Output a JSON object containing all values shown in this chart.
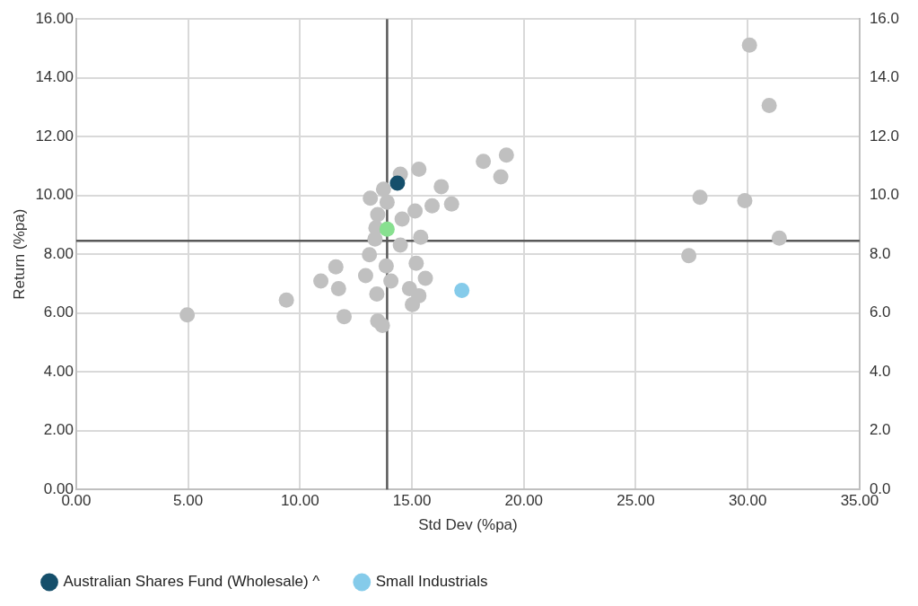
{
  "chart_data": {
    "type": "scatter",
    "xlabel": "Std Dev (%pa)",
    "ylabel": "Return (%pa)",
    "xlim": [
      0,
      35
    ],
    "xticks": [
      {
        "value": 0,
        "label": "0.00"
      },
      {
        "value": 5,
        "label": "5.00"
      },
      {
        "value": 10,
        "label": "10.00"
      },
      {
        "value": 15,
        "label": "15.00"
      },
      {
        "value": 20,
        "label": "20.00"
      },
      {
        "value": 25,
        "label": "25.00"
      },
      {
        "value": 30,
        "label": "30.00"
      },
      {
        "value": 35,
        "label": "35.00"
      }
    ],
    "ylim": [
      0,
      16
    ],
    "yticks": [
      {
        "value": 0,
        "label": "0.00"
      },
      {
        "value": 2,
        "label": "2.00"
      },
      {
        "value": 4,
        "label": "4.00"
      },
      {
        "value": 6,
        "label": "6.00"
      },
      {
        "value": 8,
        "label": "8.00"
      },
      {
        "value": 10,
        "label": "10.00"
      },
      {
        "value": 12,
        "label": "12.00"
      },
      {
        "value": 14,
        "label": "14.00"
      },
      {
        "value": 16,
        "label": "16.00"
      }
    ],
    "y2lim": [
      0,
      16
    ],
    "y2ticks": [
      {
        "value": 0,
        "label": "0.0"
      },
      {
        "value": 2,
        "label": "2.0"
      },
      {
        "value": 4,
        "label": "4.0"
      },
      {
        "value": 6,
        "label": "6.0"
      },
      {
        "value": 8,
        "label": "8.0"
      },
      {
        "value": 10,
        "label": "10.0"
      },
      {
        "value": 12,
        "label": "12.0"
      },
      {
        "value": 14,
        "label": "14.0"
      },
      {
        "value": 16,
        "label": "16.0"
      }
    ],
    "grid": true,
    "legend": "bottom",
    "marker": "circle",
    "ref_lines": [
      {
        "axis": "x",
        "value": 13.89,
        "color": "#595959"
      },
      {
        "axis": "y",
        "value": 8.46,
        "color": "#595959"
      }
    ],
    "series": [
      {
        "color": "#c0c0c0",
        "x": [
          4.96,
          9.39,
          10.93,
          11.6,
          11.72,
          11.97,
          13.47,
          13.68,
          13.14,
          13.73,
          13.89,
          14.48,
          15.31,
          18.19,
          19.22,
          18.97,
          16.31,
          16.77,
          15.9,
          15.14,
          14.56,
          13.47,
          13.39,
          15.39,
          14.48,
          13.35,
          13.1,
          15.19,
          15.6,
          12.93,
          13.43,
          14.89,
          15.31,
          15.02,
          14.06,
          13.85,
          30.08,
          30.96,
          27.87,
          29.87,
          31.41,
          27.37
        ],
        "values": [
          5.94,
          6.44,
          7.09,
          7.57,
          6.83,
          5.88,
          5.73,
          5.58,
          9.91,
          10.21,
          9.77,
          10.72,
          10.89,
          11.16,
          11.37,
          10.63,
          10.3,
          9.71,
          9.65,
          9.47,
          9.2,
          9.35,
          8.9,
          8.58,
          8.31,
          8.52,
          7.98,
          7.69,
          7.18,
          7.27,
          6.65,
          6.83,
          6.59,
          6.29,
          7.09,
          7.6,
          15.11,
          13.06,
          9.94,
          9.82,
          8.55,
          7.95
        ]
      },
      {
        "name": "Australian Shares Fund (Wholesale) ^",
        "color": "#154f6b",
        "x": [
          14.35
        ],
        "values": [
          10.42
        ]
      },
      {
        "color": "#88e090",
        "x": [
          13.89
        ],
        "values": [
          8.85
        ]
      },
      {
        "name": "Small Industrials",
        "color": "#85cbea",
        "x": [
          17.23
        ],
        "values": [
          6.77
        ]
      }
    ]
  }
}
